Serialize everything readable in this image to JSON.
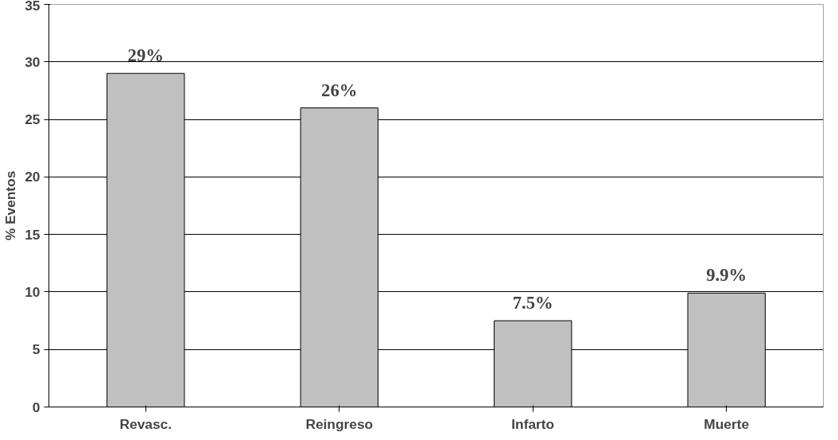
{
  "chart_data": {
    "type": "bar",
    "ylabel": "% Eventos",
    "categories": [
      "Revasc.",
      "Reingreso",
      "Infarto",
      "Muerte"
    ],
    "values": [
      29,
      26,
      7.5,
      9.9
    ],
    "value_labels": [
      "29%",
      "26%",
      "7.5%",
      "9.9%"
    ],
    "color": "#c0c0c0",
    "ylim": [
      0,
      35
    ],
    "yticks": [
      0,
      5,
      10,
      15,
      20,
      25,
      30,
      35
    ],
    "grid": "y"
  }
}
